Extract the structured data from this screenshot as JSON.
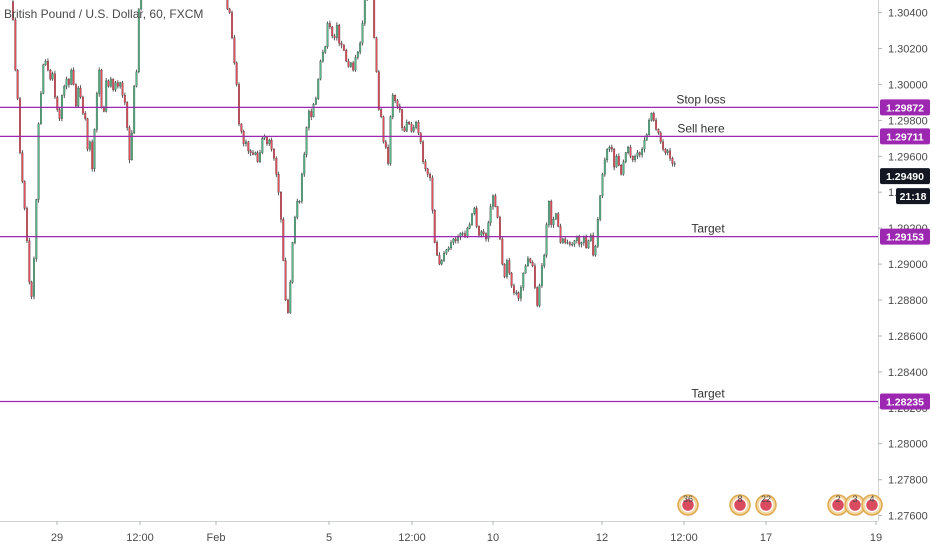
{
  "chart_data": {
    "type": "candlestick",
    "title": "British Pound / U.S. Dollar, 60, FXCM",
    "ylim": [
      1.2757,
      1.3047
    ],
    "x_ticks": [
      "29",
      "12:00",
      "Feb",
      "5",
      "12:00",
      "10",
      "12",
      "12:00",
      "17",
      "19"
    ],
    "y_ticks": [
      "1.27600",
      "1.27800",
      "1.28000",
      "1.28200",
      "1.28400",
      "1.28600",
      "1.28800",
      "1.29000",
      "1.29200",
      "1.29400",
      "1.29600",
      "1.29800",
      "1.30000",
      "1.30200",
      "1.30400"
    ],
    "levels": [
      {
        "label": "Stop loss",
        "value": 1.29872,
        "badge": "1.29872"
      },
      {
        "label": "Sell here",
        "value": 1.29711,
        "badge": "1.29711"
      },
      {
        "label": "Target",
        "value": 1.29153,
        "badge": "1.29153"
      },
      {
        "label": "Target",
        "value": 1.28235,
        "badge": "1.28235"
      }
    ],
    "current_price": {
      "value": 1.2949,
      "badge": "1.29490",
      "countdown": "21:18"
    },
    "level_color": "#9c27b0",
    "up_color": "#53b987",
    "down_color": "#eb4d5c",
    "wick_color": "#333333",
    "path": [
      1.3046,
      1.3036,
      1.3008,
      1.2992,
      1.2962,
      1.2946,
      1.2931,
      1.2913,
      1.289,
      1.2882,
      1.2903,
      1.2936,
      1.2978,
      1.2995,
      1.3011,
      1.3013,
      1.3008,
      1.3003,
      1.3006,
      1.2993,
      1.2986,
      1.2981,
      1.2994,
      1.2999,
      1.3003,
      1.3,
      1.3008,
      1.3,
      1.2988,
      1.2998,
      1.2993,
      1.2984,
      1.2981,
      1.2964,
      1.2968,
      1.2953,
      1.2975,
      1.2995,
      1.3008,
      1.2987,
      1.2985,
      1.3002,
      1.2999,
      1.3003,
      1.2997,
      1.3001,
      1.2999,
      1.3001,
      1.2994,
      1.299,
      1.2976,
      1.2958,
      1.2973,
      1.2999,
      1.3007,
      1.3042,
      1.3093,
      1.3119,
      1.313,
      1.3154,
      1.3159,
      1.3158,
      1.3173,
      1.3171,
      1.3173,
      1.3161,
      1.3162,
      1.3162,
      1.314,
      1.3151,
      1.3153,
      1.3145,
      1.3156,
      1.316,
      1.316,
      1.3149,
      1.3131,
      1.311,
      1.3096,
      1.3105,
      1.3118,
      1.3111,
      1.3103,
      1.3087,
      1.3091,
      1.3112,
      1.3102,
      1.3096,
      1.3103,
      1.31,
      1.3084,
      1.3078,
      1.3064,
      1.3042,
      1.304,
      1.3026,
      1.3012,
      1.3,
      1.2978,
      1.2974,
      1.2967,
      1.2968,
      1.2963,
      1.2962,
      1.2961,
      1.2962,
      1.2957,
      1.2962,
      1.297,
      1.2971,
      1.2967,
      1.2969,
      1.2964,
      1.2959,
      1.295,
      1.294,
      1.2925,
      1.2902,
      1.288,
      1.2873,
      1.289,
      1.2912,
      1.2926,
      1.2935,
      1.2935,
      1.295,
      1.2961,
      1.2976,
      1.2985,
      1.2982,
      1.2989,
      1.2992,
      1.3003,
      1.3013,
      1.3018,
      1.3021,
      1.3034,
      1.3032,
      1.3027,
      1.3026,
      1.3033,
      1.3023,
      1.3022,
      1.3019,
      1.3013,
      1.301,
      1.3012,
      1.3008,
      1.3015,
      1.3018,
      1.3023,
      1.3034,
      1.3048,
      1.305,
      1.3062,
      1.3053,
      1.3026,
      1.3007,
      1.2986,
      1.2982,
      1.2968,
      1.2965,
      1.2956,
      1.2982,
      1.2994,
      1.2991,
      1.2988,
      1.2986,
      1.2976,
      1.2974,
      1.2979,
      1.2978,
      1.2974,
      1.2976,
      1.2979,
      1.2973,
      1.2968,
      1.2957,
      1.2953,
      1.295,
      1.2948,
      1.293,
      1.2912,
      1.2905,
      1.29,
      1.2902,
      1.2906,
      1.2908,
      1.2909,
      1.2912,
      1.2914,
      1.2913,
      1.2915,
      1.2917,
      1.2917,
      1.2915,
      1.292,
      1.2922,
      1.2928,
      1.2931,
      1.2921,
      1.2916,
      1.2918,
      1.2917,
      1.2914,
      1.2923,
      1.2932,
      1.2938,
      1.2932,
      1.2926,
      1.2914,
      1.29,
      1.2893,
      1.2902,
      1.2895,
      1.2888,
      1.2884,
      1.2884,
      1.2881,
      1.2887,
      1.2895,
      1.2899,
      1.2903,
      1.2901,
      1.2899,
      1.2887,
      1.2877,
      1.2888,
      1.2899,
      1.2905,
      1.2922,
      1.2935,
      1.2922,
      1.2925,
      1.2928,
      1.2921,
      1.2912,
      1.2914,
      1.2912,
      1.2912,
      1.2911,
      1.2911,
      1.2913,
      1.2915,
      1.2911,
      1.2912,
      1.2915,
      1.2909,
      1.2913,
      1.2916,
      1.2905,
      1.291,
      1.2925,
      1.2938,
      1.295,
      1.2958,
      1.2964,
      1.2965,
      1.2964,
      1.2954,
      1.296,
      1.2955,
      1.295,
      1.2957,
      1.2962,
      1.2965,
      1.296,
      1.2958,
      1.296,
      1.2962,
      1.2961,
      1.2964,
      1.2969,
      1.2972,
      1.298,
      1.2984,
      1.298,
      1.2975,
      1.2973,
      1.2968,
      1.2964,
      1.2962,
      1.2963,
      1.2959,
      1.2956,
      1.2956,
      1.2955,
      1.2955,
      1.2954,
      1.2952,
      1.2949
    ],
    "events": [
      {
        "label": "36"
      },
      {
        "label": "8"
      },
      {
        "label": "22"
      },
      {
        "label": "2"
      },
      {
        "label": "3"
      },
      {
        "label": "4"
      }
    ]
  }
}
